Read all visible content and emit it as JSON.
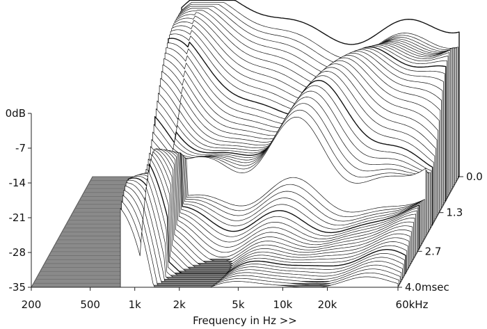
{
  "chart_data": {
    "type": "waterfall-3d",
    "title": "",
    "xlabel": "Frequency in Hz >>",
    "ylabel": "",
    "zlabel": "",
    "x_scale": "log",
    "x_ticks": [
      {
        "value": 200,
        "label": "200"
      },
      {
        "value": 500,
        "label": "500"
      },
      {
        "value": 1000,
        "label": "1k"
      },
      {
        "value": 2000,
        "label": "2k"
      },
      {
        "value": 5000,
        "label": "5k"
      },
      {
        "value": 10000,
        "label": "10k"
      },
      {
        "value": 20000,
        "label": "20k"
      },
      {
        "value": 60000,
        "label": "60kHz"
      }
    ],
    "xlim": [
      200,
      60000
    ],
    "y_ticks": [
      {
        "value": 0,
        "label": "0dB"
      },
      {
        "value": -7,
        "label": "-7"
      },
      {
        "value": -14,
        "label": "-14"
      },
      {
        "value": -21,
        "label": "-21"
      },
      {
        "value": -28,
        "label": "-28"
      },
      {
        "value": -35,
        "label": "-35"
      }
    ],
    "ylim": [
      -35,
      0
    ],
    "time_ticks": [
      {
        "value": 0.0,
        "label": "0.0"
      },
      {
        "value": 1.3,
        "label": "1.3"
      },
      {
        "value": 2.7,
        "label": "2.7"
      },
      {
        "value": 4.0,
        "label": "4.0msec"
      }
    ],
    "time_range_ms": [
      0,
      4.0
    ],
    "slices": 56,
    "colors": {
      "floor": "#8a8a8a",
      "line": "#111111",
      "fill": "#ffffff"
    }
  }
}
